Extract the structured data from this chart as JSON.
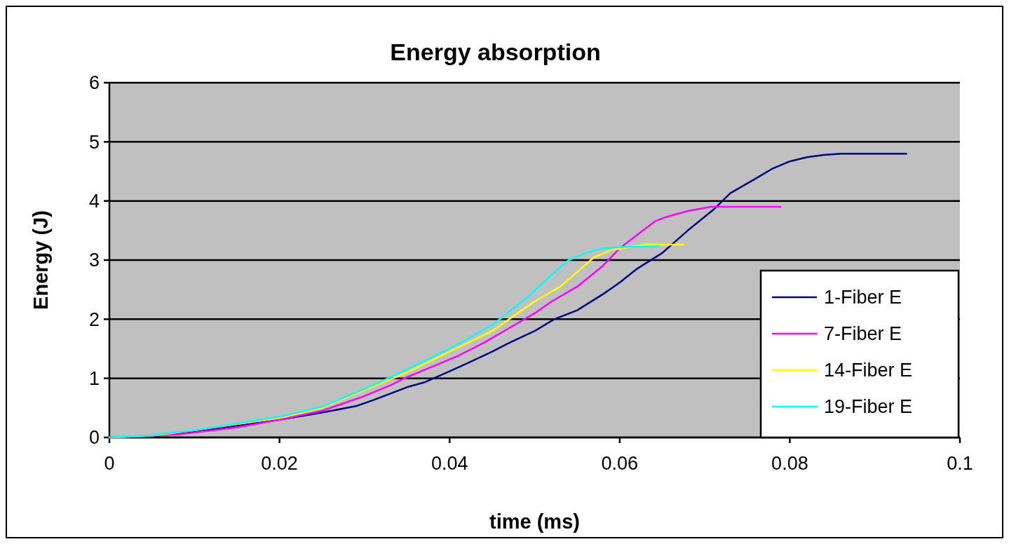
{
  "chart_data": {
    "type": "line",
    "title": "Energy absorption",
    "xlabel": "time (ms)",
    "ylabel": "Energy (J)",
    "xlim": [
      0,
      0.1
    ],
    "xticks": [
      0,
      0.02,
      0.04,
      0.06,
      0.08,
      0.1
    ],
    "ylim": [
      0,
      6
    ],
    "yticks": [
      0,
      1,
      2,
      3,
      4,
      5,
      6
    ],
    "grid": "y",
    "legend": "bottom right",
    "marker": "none",
    "line_style": "solid",
    "series": [
      {
        "name": "1-Fiber E",
        "color": "#000080",
        "x": [
          0,
          0.005,
          0.01,
          0.015,
          0.02,
          0.025,
          0.029,
          0.031,
          0.035,
          0.037,
          0.04,
          0.042,
          0.045,
          0.047,
          0.05,
          0.0523,
          0.055,
          0.058,
          0.06,
          0.062,
          0.065,
          0.068,
          0.071,
          0.073,
          0.076,
          0.078,
          0.08,
          0.082,
          0.084,
          0.086,
          0.0937
        ],
        "values": [
          0,
          0.02,
          0.1,
          0.2,
          0.3,
          0.42,
          0.53,
          0.63,
          0.85,
          0.93,
          1.12,
          1.25,
          1.45,
          1.6,
          1.8,
          2,
          2.15,
          2.42,
          2.62,
          2.85,
          3.12,
          3.5,
          3.85,
          4.13,
          4.38,
          4.55,
          4.67,
          4.74,
          4.78,
          4.8,
          4.8
        ]
      },
      {
        "name": "7-Fiber E",
        "color": "#ff00ff",
        "x": [
          0,
          0.008,
          0.015,
          0.02,
          0.025,
          0.03,
          0.033,
          0.035,
          0.038,
          0.041,
          0.044,
          0.047,
          0.05,
          0.052,
          0.055,
          0.058,
          0.06,
          0.062,
          0.0642,
          0.0655,
          0.068,
          0.0707,
          0.0789
        ],
        "values": [
          0,
          0.05,
          0.17,
          0.3,
          0.45,
          0.7,
          0.88,
          1.02,
          1.2,
          1.38,
          1.6,
          1.85,
          2.1,
          2.3,
          2.55,
          2.9,
          3.2,
          3.42,
          3.66,
          3.73,
          3.83,
          3.9,
          3.9
        ]
      },
      {
        "name": "14-Fiber E",
        "color": "#ffff00",
        "x": [
          0,
          0.005,
          0.01,
          0.02,
          0.025,
          0.03,
          0.035,
          0.04,
          0.045,
          0.048,
          0.05,
          0.053,
          0.055,
          0.057,
          0.059,
          0.063,
          0.0675
        ],
        "values": [
          0,
          0.03,
          0.12,
          0.33,
          0.5,
          0.8,
          1.1,
          1.45,
          1.8,
          2.1,
          2.3,
          2.55,
          2.8,
          3.05,
          3.17,
          3.26,
          3.26
        ]
      },
      {
        "name": "19-Fiber E",
        "color": "#00ffff",
        "x": [
          0,
          0.005,
          0.006,
          0.01,
          0.02,
          0.025,
          0.03,
          0.035,
          0.04,
          0.045,
          0.049,
          0.052,
          0.054,
          0.056,
          0.058,
          0.06,
          0.0646
        ],
        "values": [
          0,
          0.03,
          0.06,
          0.12,
          0.35,
          0.52,
          0.82,
          1.15,
          1.5,
          1.9,
          2.35,
          2.75,
          3,
          3.12,
          3.2,
          3.22,
          3.23
        ]
      }
    ]
  }
}
